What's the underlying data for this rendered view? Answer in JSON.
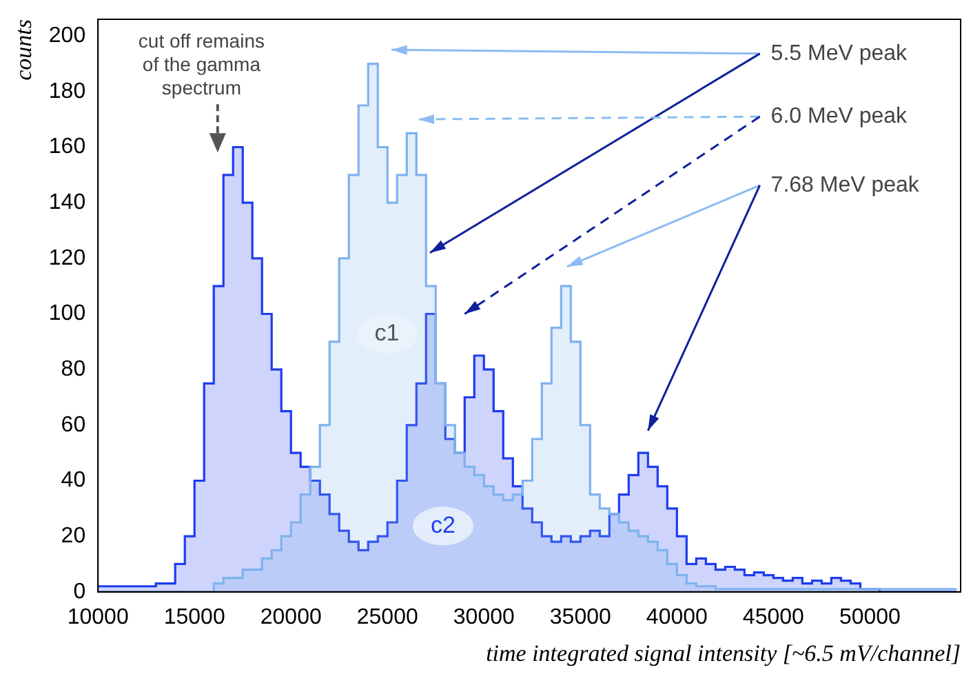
{
  "chart_data": {
    "type": "histogram",
    "xlabel": "time integrated signal intensity [~6.5 mV/channel]",
    "ylabel": "counts",
    "bins": [
      10000,
      10500,
      11000,
      11500,
      12000,
      12500,
      13000,
      13500,
      14000,
      14500,
      15000,
      15500,
      16000,
      16500,
      17000,
      17500,
      18000,
      18500,
      19000,
      19500,
      20000,
      20500,
      21000,
      21500,
      22000,
      22500,
      23000,
      23500,
      24000,
      24500,
      25000,
      25500,
      26000,
      26500,
      27000,
      27500,
      28000,
      28500,
      29000,
      29500,
      30000,
      30500,
      31000,
      31500,
      32000,
      32500,
      33000,
      33500,
      34000,
      34500,
      35000,
      35500,
      36000,
      36500,
      37000,
      37500,
      38000,
      38500,
      39000,
      39500,
      40000,
      40500,
      41000,
      41500,
      42000,
      42500,
      43000,
      43500,
      44000,
      44500,
      45000,
      45500,
      46000,
      46500,
      47000,
      47500,
      48000,
      48500,
      49000,
      49500,
      50000,
      50500,
      51000,
      51500,
      52000,
      52500,
      53000,
      53500,
      54000,
      54500
    ],
    "series": [
      {
        "name": "c1",
        "color": "#7fb2ee",
        "values": [
          0,
          0,
          0,
          0,
          0,
          0,
          0,
          0,
          0,
          0,
          0,
          0,
          3,
          5,
          5,
          8,
          8,
          12,
          15,
          20,
          25,
          35,
          45,
          60,
          90,
          120,
          150,
          175,
          190,
          160,
          140,
          150,
          165,
          150,
          110,
          75,
          60,
          50,
          45,
          42,
          38,
          35,
          33,
          35,
          40,
          55,
          75,
          95,
          110,
          90,
          60,
          35,
          30,
          28,
          25,
          22,
          20,
          18,
          15,
          10,
          6,
          3,
          2,
          2,
          1,
          1,
          1,
          1,
          1,
          1,
          1,
          1,
          1,
          1,
          1,
          1,
          1,
          1,
          1,
          1,
          1,
          1,
          1,
          1,
          1,
          1,
          1,
          1,
          1
        ]
      },
      {
        "name": "c2",
        "color": "#1e3cf0",
        "values": [
          2,
          2,
          2,
          2,
          2,
          2,
          3,
          3,
          10,
          20,
          40,
          75,
          110,
          150,
          160,
          140,
          120,
          100,
          80,
          65,
          50,
          45,
          40,
          35,
          28,
          22,
          18,
          15,
          18,
          20,
          25,
          40,
          60,
          75,
          100,
          75,
          55,
          50,
          70,
          85,
          80,
          65,
          48,
          38,
          30,
          25,
          20,
          18,
          20,
          18,
          20,
          22,
          20,
          28,
          35,
          42,
          50,
          45,
          38,
          30,
          20,
          10,
          12,
          10,
          8,
          9,
          8,
          6,
          7,
          6,
          5,
          4,
          5,
          3,
          4,
          3,
          5,
          4,
          3,
          1,
          1,
          0,
          0,
          0,
          0,
          0,
          0,
          0,
          0
        ]
      }
    ],
    "xlim": [
      10000,
      54700
    ],
    "xticks": [
      10000,
      15000,
      20000,
      25000,
      30000,
      35000,
      40000,
      45000,
      50000
    ],
    "ylim": [
      0,
      206
    ],
    "yticks": [
      0,
      20,
      40,
      60,
      80,
      100,
      120,
      140,
      160,
      180,
      200
    ],
    "grid": false,
    "legend": false,
    "annotations": [
      "cut off remains of the gamma spectrum",
      "5.5 MeV peak",
      "6.0 MeV peak",
      "7.68 MeV peak"
    ]
  }
}
